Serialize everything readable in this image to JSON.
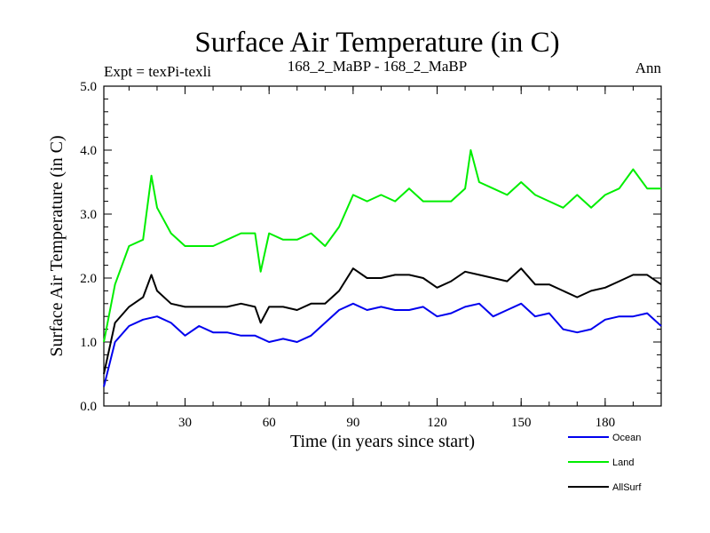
{
  "chart_data": {
    "type": "line",
    "title": "Surface Air Temperature (in C)",
    "subtitle_left": "Expt = texPi-texli",
    "subtitle_center": "168_2_MaBP - 168_2_MaBP",
    "subtitle_right": "Ann",
    "xlabel": "Time (in years since start)",
    "ylabel": "Surface Air Temperature (in C)",
    "xlim": [
      1,
      200
    ],
    "ylim": [
      0.0,
      5.0
    ],
    "xticks": [
      30,
      60,
      90,
      120,
      150,
      180
    ],
    "xtick_labels": [
      "30",
      "60",
      "90",
      "120",
      "150",
      "180"
    ],
    "yticks": [
      0.0,
      1.0,
      2.0,
      3.0,
      4.0,
      5.0
    ],
    "ytick_labels": [
      "0.0",
      "1.0",
      "2.0",
      "3.0",
      "4.0",
      "5.0"
    ],
    "series": [
      {
        "name": "Ocean",
        "color": "#0000ee",
        "x": [
          1,
          5,
          10,
          15,
          20,
          25,
          30,
          35,
          40,
          45,
          50,
          55,
          60,
          65,
          70,
          75,
          80,
          85,
          90,
          95,
          100,
          105,
          110,
          115,
          120,
          125,
          130,
          135,
          140,
          145,
          150,
          155,
          160,
          165,
          170,
          175,
          180,
          185,
          190,
          195,
          200
        ],
        "y": [
          0.3,
          1.0,
          1.25,
          1.35,
          1.4,
          1.3,
          1.1,
          1.25,
          1.15,
          1.15,
          1.1,
          1.1,
          1.0,
          1.05,
          1.0,
          1.1,
          1.3,
          1.5,
          1.6,
          1.5,
          1.55,
          1.5,
          1.5,
          1.55,
          1.4,
          1.45,
          1.55,
          1.6,
          1.4,
          1.5,
          1.6,
          1.4,
          1.45,
          1.2,
          1.15,
          1.2,
          1.35,
          1.4,
          1.4,
          1.45,
          1.25
        ]
      },
      {
        "name": "Land",
        "color": "#00ee00",
        "x": [
          1,
          5,
          10,
          15,
          18,
          20,
          25,
          30,
          35,
          40,
          45,
          50,
          55,
          57,
          60,
          65,
          70,
          75,
          80,
          85,
          90,
          95,
          100,
          105,
          110,
          115,
          120,
          125,
          130,
          132,
          135,
          140,
          145,
          150,
          155,
          160,
          165,
          170,
          175,
          180,
          185,
          190,
          195,
          200
        ],
        "y": [
          1.0,
          1.9,
          2.5,
          2.6,
          3.6,
          3.1,
          2.7,
          2.5,
          2.5,
          2.5,
          2.6,
          2.7,
          2.7,
          2.1,
          2.7,
          2.6,
          2.6,
          2.7,
          2.5,
          2.8,
          3.3,
          3.2,
          3.3,
          3.2,
          3.4,
          3.2,
          3.2,
          3.2,
          3.4,
          4.0,
          3.5,
          3.4,
          3.3,
          3.5,
          3.3,
          3.2,
          3.1,
          3.3,
          3.1,
          3.3,
          3.4,
          3.7,
          3.4,
          3.4
        ]
      },
      {
        "name": "AllSurf",
        "color": "#000000",
        "x": [
          1,
          5,
          10,
          15,
          18,
          20,
          25,
          30,
          35,
          40,
          45,
          50,
          55,
          57,
          60,
          65,
          70,
          75,
          80,
          85,
          90,
          95,
          100,
          105,
          110,
          115,
          120,
          125,
          130,
          135,
          140,
          145,
          150,
          155,
          160,
          165,
          170,
          175,
          180,
          185,
          190,
          195,
          200
        ],
        "y": [
          0.5,
          1.3,
          1.55,
          1.7,
          2.05,
          1.8,
          1.6,
          1.55,
          1.55,
          1.55,
          1.55,
          1.6,
          1.55,
          1.3,
          1.55,
          1.55,
          1.5,
          1.6,
          1.6,
          1.8,
          2.15,
          2.0,
          2.0,
          2.05,
          2.05,
          2.0,
          1.85,
          1.95,
          2.1,
          2.05,
          2.0,
          1.95,
          2.15,
          1.9,
          1.9,
          1.8,
          1.7,
          1.8,
          1.85,
          1.95,
          2.05,
          2.05,
          1.9
        ]
      }
    ]
  }
}
